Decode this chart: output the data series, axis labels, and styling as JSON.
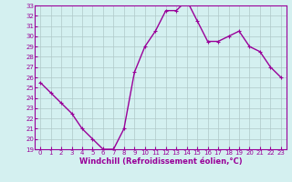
{
  "x": [
    0,
    1,
    2,
    3,
    4,
    5,
    6,
    7,
    8,
    9,
    10,
    11,
    12,
    13,
    14,
    15,
    16,
    17,
    18,
    19,
    20,
    21,
    22,
    23
  ],
  "y": [
    25.5,
    24.5,
    23.5,
    22.5,
    21.0,
    20.0,
    19.0,
    19.0,
    21.0,
    26.5,
    29.0,
    30.5,
    32.5,
    32.5,
    33.5,
    31.5,
    29.5,
    29.5,
    30.0,
    30.5,
    29.0,
    28.5,
    27.0,
    26.0
  ],
  "line_color": "#990099",
  "marker": "+",
  "marker_size": 3,
  "bg_color": "#d4f0f0",
  "grid_color": "#b0c8c8",
  "xlabel": "Windchill (Refroidissement éolien,°C)",
  "xlabel_fontsize": 6.0,
  "xlabel_color": "#990099",
  "tick_color": "#990099",
  "xlim": [
    -0.5,
    23.5
  ],
  "ylim": [
    19,
    33
  ],
  "yticks": [
    19,
    20,
    21,
    22,
    23,
    24,
    25,
    26,
    27,
    28,
    29,
    30,
    31,
    32,
    33
  ],
  "xticks": [
    0,
    1,
    2,
    3,
    4,
    5,
    6,
    7,
    8,
    9,
    10,
    11,
    12,
    13,
    14,
    15,
    16,
    17,
    18,
    19,
    20,
    21,
    22,
    23
  ],
  "tick_fontsize": 5.0,
  "linewidth": 1.0,
  "markeredgewidth": 0.8
}
